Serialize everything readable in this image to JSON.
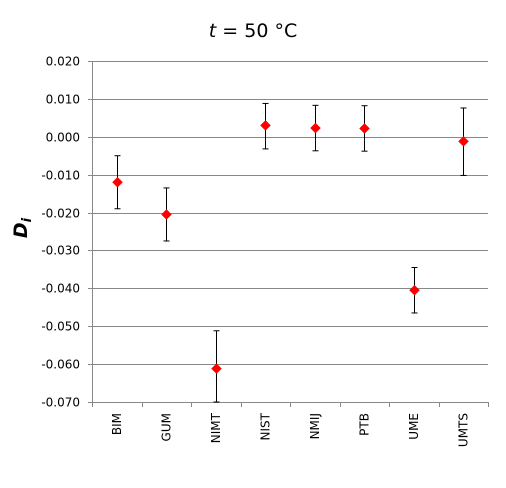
{
  "chart_data": {
    "type": "scatter",
    "title_var": "t",
    "title_rest": " = 50 °C",
    "ylabel_main": "D",
    "ylabel_sub": "i",
    "xlabel": "",
    "ylim": [
      -0.07,
      0.02
    ],
    "yticks": [
      "0.020",
      "0.010",
      "0.000",
      "-0.010",
      "-0.020",
      "-0.030",
      "-0.040",
      "-0.050",
      "-0.060",
      "-0.070"
    ],
    "ytick_values": [
      0.02,
      0.01,
      0.0,
      -0.01,
      -0.02,
      -0.03,
      -0.04,
      -0.05,
      -0.06,
      -0.07
    ],
    "grid": "horizontal",
    "marker_color": "#ff0000",
    "categories": [
      "BIM",
      "GUM",
      "NIMT",
      "NIST",
      "NMIJ",
      "PTB",
      "UME",
      "UMTS"
    ],
    "series": [
      {
        "values": [
          -0.012,
          -0.0205,
          -0.0612,
          0.003,
          0.0023,
          0.0022,
          -0.0405,
          -0.0012
        ],
        "error_low": [
          -0.019,
          -0.0275,
          -0.07,
          -0.0032,
          -0.0037,
          -0.0038,
          -0.0465,
          -0.0102
        ],
        "error_high": [
          -0.005,
          -0.0135,
          -0.0512,
          0.0088,
          0.0083,
          0.0082,
          -0.0345,
          0.0076
        ]
      }
    ]
  }
}
